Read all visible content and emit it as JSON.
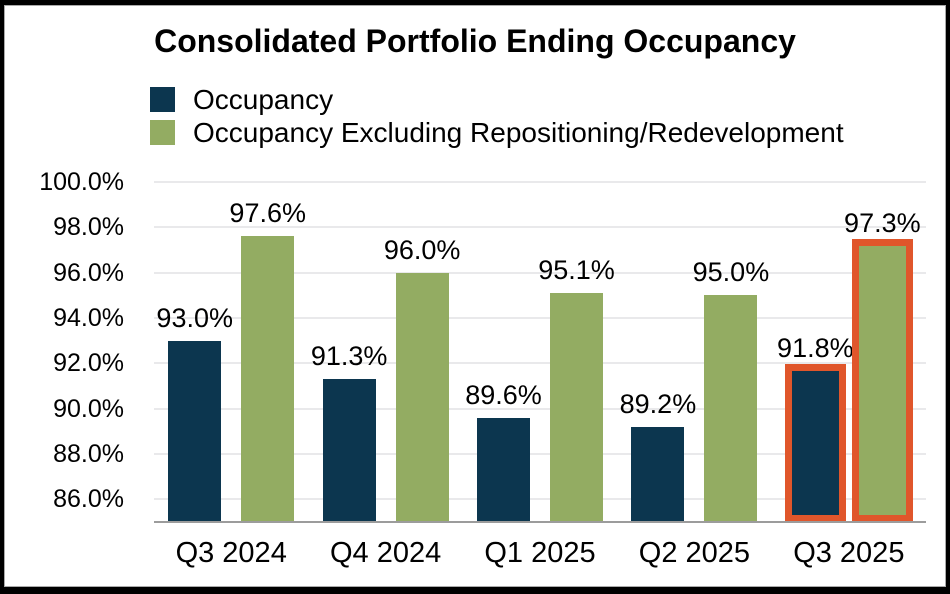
{
  "title": "Consolidated Portfolio Ending Occupancy",
  "legend": {
    "items": [
      {
        "label": "Occupancy",
        "color": "#0c364f"
      },
      {
        "label": "Occupancy Excluding Repositioning/Redevelopment",
        "color": "#93ac62"
      }
    ]
  },
  "chart_data": {
    "type": "bar",
    "title": "Consolidated Portfolio Ending Occupancy",
    "categories": [
      "Q3 2024",
      "Q4 2024",
      "Q1 2025",
      "Q2 2025",
      "Q3 2025"
    ],
    "series": [
      {
        "name": "Occupancy",
        "color": "#0c364f",
        "values": [
          93.0,
          91.3,
          89.6,
          89.2,
          91.8
        ],
        "labels": [
          "93.0%",
          "91.3%",
          "89.6%",
          "89.2%",
          "91.8%"
        ]
      },
      {
        "name": "Occupancy Excluding Repositioning/Redevelopment",
        "color": "#93ac62",
        "values": [
          97.6,
          96.0,
          95.1,
          95.0,
          97.3
        ],
        "labels": [
          "97.6%",
          "96.0%",
          "95.1%",
          "95.0%",
          "97.3%"
        ]
      }
    ],
    "ylim": [
      85.0,
      100.0
    ],
    "yticks": [
      "100.0%",
      "98.0%",
      "96.0%",
      "94.0%",
      "92.0%",
      "90.0%",
      "88.0%",
      "86.0%"
    ],
    "ytick_values": [
      100.0,
      98.0,
      96.0,
      94.0,
      92.0,
      90.0,
      88.0,
      86.0
    ],
    "grid": true,
    "legend_position": "top-left",
    "highlight": {
      "category": "Q3 2025",
      "category_index": 4,
      "border_color": "#e0562b"
    },
    "colors": {
      "gridline": "#e9e9eb",
      "axis_line": "#9c9c9c",
      "label_text": "#000000"
    }
  }
}
